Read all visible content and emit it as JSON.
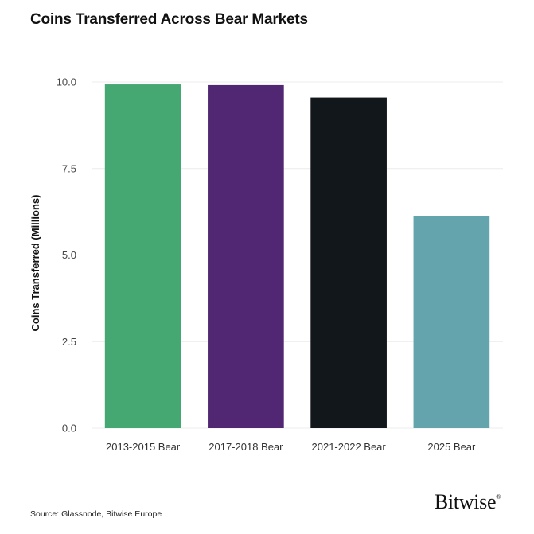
{
  "title": "Coins Transferred Across Bear Markets",
  "source": "Source: Glassnode, Bitwise Europe",
  "logo": {
    "text": "Bitwise",
    "mark": "®"
  },
  "chart_data": {
    "type": "bar",
    "title": "Coins Transferred Across Bear Markets",
    "xlabel": "",
    "ylabel": "Coins Transferred (Millions)",
    "ylim": [
      0,
      10
    ],
    "yticks": [
      "0.0",
      "2.5",
      "5.0",
      "7.5",
      "10.0"
    ],
    "ytick_values": [
      0,
      2.5,
      5,
      7.5,
      10
    ],
    "categories": [
      "2013-2015 Bear",
      "2017-2018 Bear",
      "2021-2022 Bear",
      "2025 Bear"
    ],
    "values": [
      9.93,
      9.91,
      9.55,
      6.12
    ],
    "colors": [
      "#45A872",
      "#512773",
      "#12171C",
      "#64A4AC"
    ],
    "grid": true,
    "legend": "none"
  }
}
